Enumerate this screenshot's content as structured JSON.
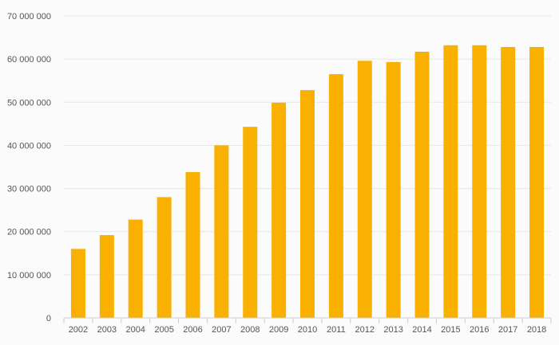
{
  "chart_data": {
    "type": "bar",
    "title": "",
    "xlabel": "",
    "ylabel": "",
    "categories": [
      "2002",
      "2003",
      "2004",
      "2005",
      "2006",
      "2007",
      "2008",
      "2009",
      "2010",
      "2011",
      "2012",
      "2013",
      "2014",
      "2015",
      "2016",
      "2017",
      "2018"
    ],
    "values": [
      16000000,
      19200000,
      22800000,
      28000000,
      33800000,
      40000000,
      44300000,
      49900000,
      52800000,
      56500000,
      59600000,
      59300000,
      61700000,
      63200000,
      63200000,
      62800000,
      62800000
    ],
    "ylim": [
      0,
      70000000
    ],
    "yticks": [
      0,
      10000000,
      20000000,
      30000000,
      40000000,
      50000000,
      60000000,
      70000000
    ],
    "ytick_labels": [
      "0",
      "10 000 000",
      "20 000 000",
      "30 000 000",
      "40 000 000",
      "50 000 000",
      "60 000 000",
      "70 000 000"
    ],
    "grid": true,
    "bar_color": "#f9b000",
    "grid_color": "#e6e6e6",
    "axis_color": "#cccccc",
    "label_color": "#555555"
  }
}
